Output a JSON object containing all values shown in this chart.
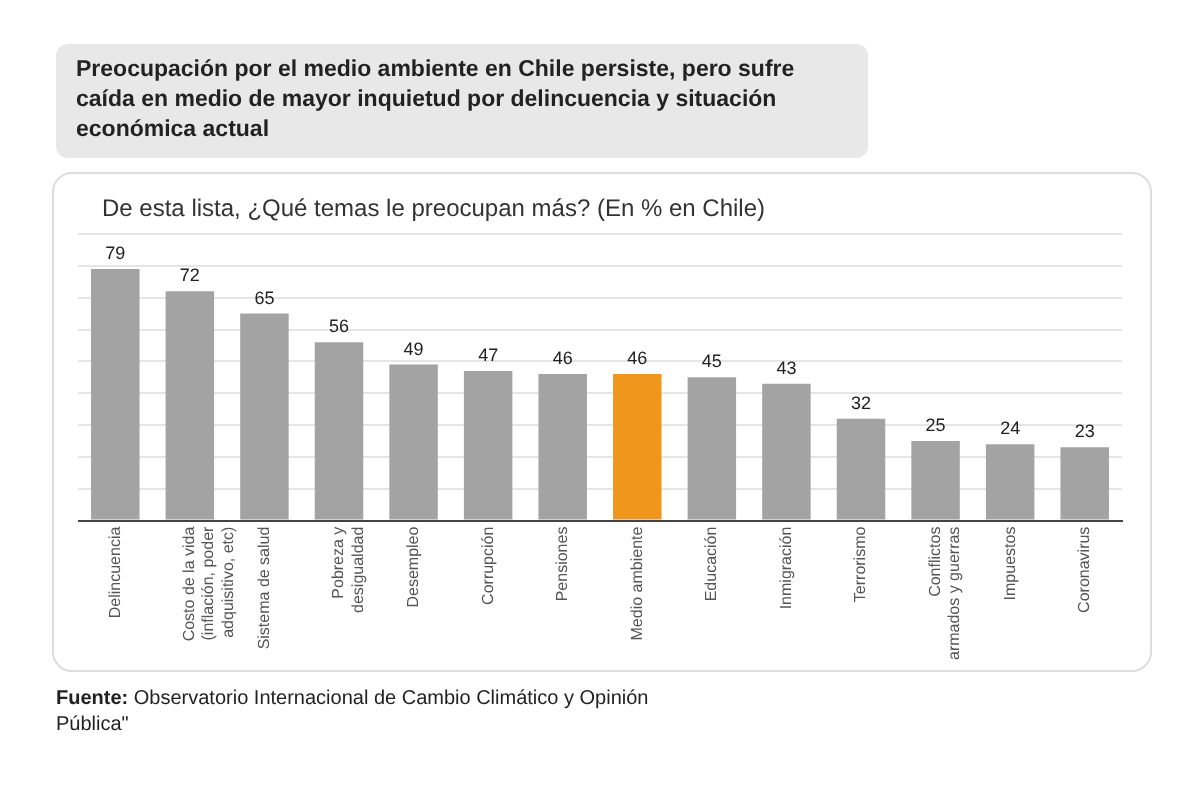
{
  "chart_data": {
    "type": "bar",
    "title": "Preocupación por el medio ambiente en Chile persiste, pero sufre caída en medio de mayor inquietud por delincuencia y situación económica actual",
    "subtitle": "De esta lista, ¿Qué temas le preocupan más? (En % en Chile)",
    "categories": [
      "Delincuencia",
      "Costo de la vida (inflación, poder adquisitivo, etc)",
      "Sistema de salud",
      "Pobreza y desigualdad",
      "Desempleo",
      "Corrupción",
      "Pensiones",
      "Medio ambiente",
      "Educación",
      "Inmigración",
      "Terrorismo",
      "Conflictos armados y guerras",
      "Impuestos",
      "Coronavirus"
    ],
    "values": [
      79,
      72,
      65,
      56,
      49,
      47,
      46,
      46,
      45,
      43,
      32,
      25,
      24,
      23
    ],
    "colors": [
      "#a3a3a3",
      "#a3a3a3",
      "#a3a3a3",
      "#a3a3a3",
      "#a3a3a3",
      "#a3a3a3",
      "#a3a3a3",
      "#f0961c",
      "#a3a3a3",
      "#a3a3a3",
      "#a3a3a3",
      "#a3a3a3",
      "#a3a3a3",
      "#a3a3a3"
    ],
    "ylim": [
      0,
      90
    ],
    "yticks": [
      {
        "value": 0,
        "label": null
      },
      {
        "value": 10,
        "label": null
      },
      {
        "value": 20,
        "label": null
      },
      {
        "value": 30,
        "label": null
      },
      {
        "value": 40,
        "label": null
      },
      {
        "value": 50,
        "label": null
      },
      {
        "value": 60,
        "label": null
      },
      {
        "value": 70,
        "label": null
      },
      {
        "value": 80,
        "label": null
      },
      {
        "value": 90,
        "label": null
      }
    ],
    "tick_labels": "x",
    "grid": "y",
    "data_labels": true,
    "legend": false,
    "annotations": [
      "Fuente: Observatorio Internacional de Cambio Climático y Opinión Pública\""
    ]
  }
}
